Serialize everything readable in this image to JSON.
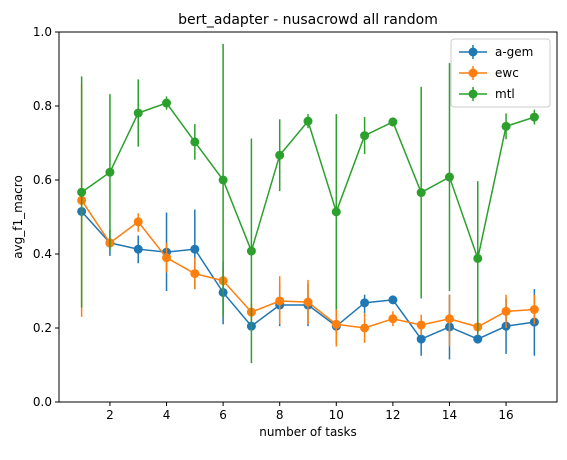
{
  "chart_data": {
    "type": "line",
    "title": "bert_adapter - nusacrowd all random",
    "xlabel": "number of tasks",
    "ylabel": "avg_f1_macro",
    "xlim": [
      0.2,
      17.8
    ],
    "ylim": [
      0.0,
      1.0
    ],
    "xticks": [
      2,
      4,
      6,
      8,
      10,
      12,
      14,
      16
    ],
    "yticks": [
      0.0,
      0.2,
      0.4,
      0.6,
      0.8,
      1.0
    ],
    "xtick_labels": [
      "2",
      "4",
      "6",
      "8",
      "10",
      "12",
      "14",
      "16"
    ],
    "ytick_labels": [
      "0.0",
      "0.2",
      "0.4",
      "0.6",
      "0.8",
      "1.0"
    ],
    "grid": false,
    "legend_position": "top-right",
    "x": [
      1,
      2,
      3,
      4,
      5,
      6,
      7,
      8,
      9,
      10,
      11,
      12,
      13,
      14,
      15,
      16,
      17
    ],
    "series": [
      {
        "name": "a-gem",
        "color": "#1f77b4",
        "values": [
          0.515,
          0.43,
          0.413,
          0.405,
          0.413,
          0.296,
          0.205,
          0.262,
          0.262,
          0.205,
          0.268,
          0.276,
          0.17,
          0.203,
          0.17,
          0.205,
          0.216
        ],
        "err_low": [
          0.515,
          0.395,
          0.375,
          0.3,
          0.305,
          0.21,
          0.205,
          0.205,
          0.205,
          0.16,
          0.24,
          0.276,
          0.125,
          0.115,
          0.17,
          0.13,
          0.125
        ],
        "err_high": [
          0.515,
          0.465,
          0.45,
          0.512,
          0.52,
          0.38,
          0.205,
          0.32,
          0.32,
          0.25,
          0.29,
          0.276,
          0.21,
          0.29,
          0.17,
          0.28,
          0.305
        ]
      },
      {
        "name": "ewc",
        "color": "#ff7f0e",
        "values": [
          0.545,
          0.43,
          0.487,
          0.39,
          0.347,
          0.328,
          0.243,
          0.273,
          0.27,
          0.21,
          0.2,
          0.225,
          0.208,
          0.225,
          0.203,
          0.245,
          0.25
        ],
        "err_low": [
          0.23,
          0.43,
          0.46,
          0.35,
          0.305,
          0.3,
          0.22,
          0.21,
          0.21,
          0.15,
          0.16,
          0.205,
          0.18,
          0.15,
          0.18,
          0.2,
          0.21
        ],
        "err_high": [
          0.86,
          0.43,
          0.51,
          0.43,
          0.39,
          0.36,
          0.265,
          0.34,
          0.33,
          0.27,
          0.24,
          0.245,
          0.236,
          0.29,
          0.226,
          0.29,
          0.29
        ]
      },
      {
        "name": "mtl",
        "color": "#2ca02c",
        "values": [
          0.567,
          0.621,
          0.781,
          0.808,
          0.703,
          0.6,
          0.408,
          0.667,
          0.759,
          0.514,
          0.72,
          0.757,
          0.566,
          0.608,
          0.388,
          0.745,
          0.77
        ],
        "err_low": [
          0.255,
          0.41,
          0.69,
          0.79,
          0.655,
          0.23,
          0.105,
          0.57,
          0.74,
          0.25,
          0.67,
          0.745,
          0.28,
          0.3,
          0.18,
          0.71,
          0.75
        ],
        "err_high": [
          0.88,
          0.832,
          0.872,
          0.826,
          0.751,
          0.968,
          0.712,
          0.764,
          0.778,
          0.778,
          0.77,
          0.769,
          0.852,
          0.916,
          0.597,
          0.78,
          0.79
        ]
      }
    ]
  }
}
